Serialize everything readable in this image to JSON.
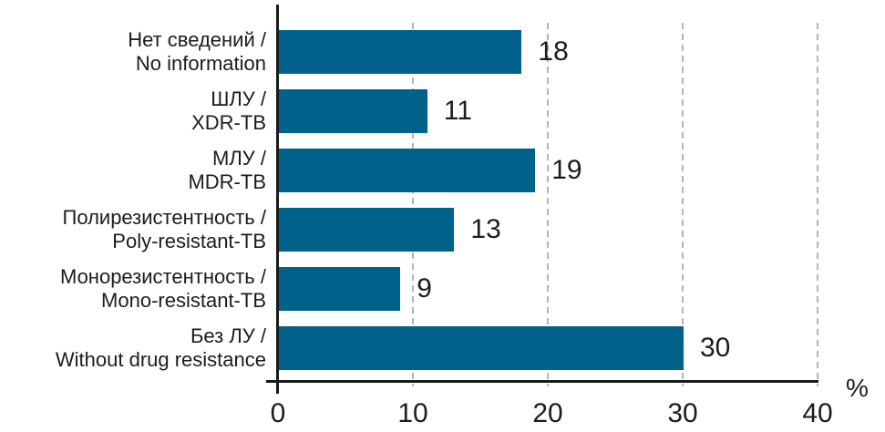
{
  "chart_data": {
    "type": "bar",
    "orientation": "horizontal",
    "title": "",
    "unit": "%",
    "xlim": [
      0,
      40
    ],
    "x_ticks": [
      0,
      10,
      20,
      30,
      40
    ],
    "grid": "vertical-dashed",
    "legend": "none",
    "bar_color": "#00628A",
    "gridline_color": "#b5b5b5",
    "axis_color": "#1a1a1a",
    "text_color": "#1c1c1c",
    "categories": [
      {
        "ru": "Нет сведений /",
        "en": "No information"
      },
      {
        "ru": "ШЛУ /",
        "en": "XDR-TB"
      },
      {
        "ru": "МЛУ /",
        "en": "MDR-TB"
      },
      {
        "ru": "Полирезистентность /",
        "en": "Poly-resistant-TB"
      },
      {
        "ru": "Монорезистентность /",
        "en": "Mono-resistant-TB"
      },
      {
        "ru": "Без ЛУ /",
        "en": "Without drug resistance"
      }
    ],
    "values": [
      18,
      11,
      19,
      13,
      9,
      30
    ]
  }
}
